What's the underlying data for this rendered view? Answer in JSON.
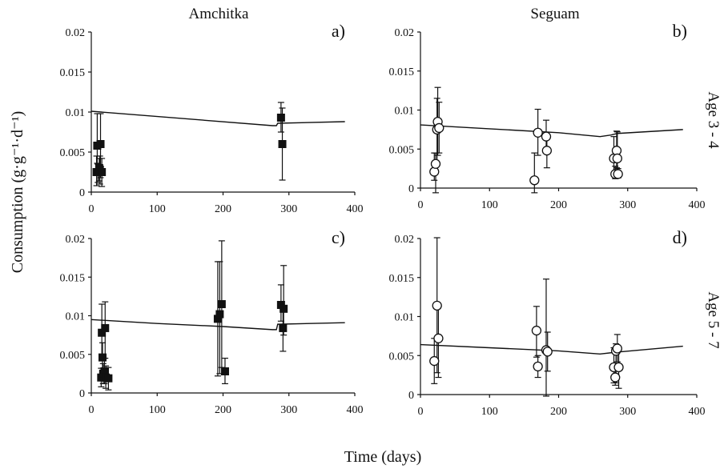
{
  "figure": {
    "column_titles": [
      "Amchitka",
      "Seguam"
    ],
    "row_labels": [
      "Age 3 - 4",
      "Age 5 - 7"
    ],
    "ylabel": "Consumption (g·g⁻¹·d⁻¹)",
    "xlabel": "Time (days)"
  },
  "chart_data": [
    {
      "type": "scatter",
      "panel": "a)",
      "location": "Amchitka",
      "age": "Age 3 - 4",
      "marker": "filled-square",
      "xlim": [
        0,
        400
      ],
      "ylim": [
        0,
        0.02
      ],
      "xticks": [
        "0",
        "100",
        "200",
        "300",
        "400"
      ],
      "yticks": [
        "0",
        "0.005",
        "0.01",
        "0.015",
        "0.02"
      ],
      "points": [
        {
          "x": 8,
          "y": 0.0025,
          "lo": 0.0008,
          "hi": 0.0045
        },
        {
          "x": 9,
          "y": 0.0058,
          "lo": 0.0036,
          "hi": 0.0098
        },
        {
          "x": 10,
          "y": 0.0025,
          "lo": 0.0012,
          "hi": 0.0035
        },
        {
          "x": 12,
          "y": 0.003,
          "lo": 0.0014,
          "hi": 0.0042
        },
        {
          "x": 13,
          "y": 0.0028,
          "lo": 0.001,
          "hi": 0.0045
        },
        {
          "x": 14,
          "y": 0.006,
          "lo": 0.0018,
          "hi": 0.0098
        },
        {
          "x": 16,
          "y": 0.0025,
          "lo": 0.0007,
          "hi": 0.0042
        },
        {
          "x": 288,
          "y": 0.0093,
          "lo": 0.0075,
          "hi": 0.0112
        },
        {
          "x": 290,
          "y": 0.006,
          "lo": 0.0015,
          "hi": 0.0105
        }
      ],
      "model_line": {
        "x": [
          0,
          275,
          276,
          281,
          283,
          385
        ],
        "y": [
          0.0101,
          0.0083,
          0.0083,
          0.0083,
          0.0086,
          0.0088
        ]
      }
    },
    {
      "type": "scatter",
      "panel": "b)",
      "location": "Seguam",
      "age": "Age 3 - 4",
      "marker": "open-circle",
      "xlim": [
        0,
        400
      ],
      "ylim": [
        0,
        0.02
      ],
      "xticks": [
        "0",
        "100",
        "200",
        "300",
        "400"
      ],
      "yticks": [
        "0",
        "0.005",
        "0.01",
        "0.015",
        "0.02"
      ],
      "points": [
        {
          "x": 20,
          "y": 0.0021,
          "lo": 0.001,
          "hi": 0.0045
        },
        {
          "x": 22,
          "y": 0.0031,
          "lo": -0.0006,
          "hi": 0.0045
        },
        {
          "x": 24,
          "y": 0.0075,
          "lo": 0.0031,
          "hi": 0.0115
        },
        {
          "x": 25,
          "y": 0.0085,
          "lo": 0.0042,
          "hi": 0.0129
        },
        {
          "x": 27,
          "y": 0.0077,
          "lo": 0.0045,
          "hi": 0.011
        },
        {
          "x": 165,
          "y": 0.001,
          "lo": -0.0006,
          "hi": 0.0045
        },
        {
          "x": 170,
          "y": 0.0071,
          "lo": 0.0042,
          "hi": 0.0101
        },
        {
          "x": 182,
          "y": 0.0066,
          "lo": 0.0045,
          "hi": 0.0087
        },
        {
          "x": 183,
          "y": 0.0048,
          "lo": 0.0026,
          "hi": 0.0069
        },
        {
          "x": 280,
          "y": 0.0038,
          "lo": 0.0017,
          "hi": 0.0066
        },
        {
          "x": 282,
          "y": 0.0018,
          "lo": 0.0012,
          "hi": 0.0028
        },
        {
          "x": 284,
          "y": 0.0048,
          "lo": 0.0026,
          "hi": 0.0073
        },
        {
          "x": 285,
          "y": 0.0038,
          "lo": 0.0018,
          "hi": 0.0072
        },
        {
          "x": 286,
          "y": 0.0018,
          "lo": 0.0013,
          "hi": 0.0025
        }
      ],
      "model_line": {
        "x": [
          0,
          100,
          200,
          260,
          276,
          285,
          380
        ],
        "y": [
          0.0081,
          0.0076,
          0.0071,
          0.0066,
          0.0068,
          0.007,
          0.0075
        ]
      }
    },
    {
      "type": "scatter",
      "panel": "c)",
      "location": "Amchitka",
      "age": "Age 5 - 7",
      "marker": "filled-square",
      "xlim": [
        0,
        400
      ],
      "ylim": [
        0,
        0.02
      ],
      "xticks": [
        "0",
        "100",
        "200",
        "300",
        "400"
      ],
      "yticks": [
        "0",
        "0.005",
        "0.01",
        "0.015",
        "0.02"
      ],
      "points": [
        {
          "x": 15,
          "y": 0.002,
          "lo": 0.0008,
          "hi": 0.0032
        },
        {
          "x": 16,
          "y": 0.0078,
          "lo": 0.0045,
          "hi": 0.0115
        },
        {
          "x": 17,
          "y": 0.0046,
          "lo": 0.0028,
          "hi": 0.0065
        },
        {
          "x": 18,
          "y": 0.0025,
          "lo": 0.0012,
          "hi": 0.0038
        },
        {
          "x": 20,
          "y": 0.0028,
          "lo": 0.0012,
          "hi": 0.0045
        },
        {
          "x": 21,
          "y": 0.0084,
          "lo": 0.0045,
          "hi": 0.0118
        },
        {
          "x": 22,
          "y": 0.002,
          "lo": 0.0006,
          "hi": 0.0035
        },
        {
          "x": 26,
          "y": 0.0019,
          "lo": 0.0004,
          "hi": 0.0033
        },
        {
          "x": 192,
          "y": 0.0096,
          "lo": 0.0022,
          "hi": 0.017
        },
        {
          "x": 195,
          "y": 0.0102,
          "lo": 0.0025,
          "hi": 0.017
        },
        {
          "x": 198,
          "y": 0.0115,
          "lo": 0.0033,
          "hi": 0.0197
        },
        {
          "x": 203,
          "y": 0.0028,
          "lo": 0.0012,
          "hi": 0.0045
        },
        {
          "x": 288,
          "y": 0.0114,
          "lo": 0.0093,
          "hi": 0.014
        },
        {
          "x": 291,
          "y": 0.0084,
          "lo": 0.0054,
          "hi": 0.0112
        },
        {
          "x": 292,
          "y": 0.0109,
          "lo": 0.0075,
          "hi": 0.0165
        }
      ],
      "model_line": {
        "x": [
          0,
          100,
          200,
          275,
          276,
          281,
          283,
          385
        ],
        "y": [
          0.0095,
          0.009,
          0.0086,
          0.0082,
          0.0082,
          0.0082,
          0.0089,
          0.0091
        ]
      }
    },
    {
      "type": "scatter",
      "panel": "d)",
      "location": "Seguam",
      "age": "Age 5 - 7",
      "marker": "open-circle",
      "xlim": [
        0,
        400
      ],
      "ylim": [
        0,
        0.02
      ],
      "xticks": [
        "0",
        "100",
        "200",
        "300",
        "400"
      ],
      "yticks": [
        "0",
        "0.005",
        "0.01",
        "0.015",
        "0.02"
      ],
      "points": [
        {
          "x": 20,
          "y": 0.0043,
          "lo": 0.0014,
          "hi": 0.0072
        },
        {
          "x": 24,
          "y": 0.0114,
          "lo": 0.0028,
          "hi": 0.0201
        },
        {
          "x": 26,
          "y": 0.0072,
          "lo": 0.0022,
          "hi": 0.0115
        },
        {
          "x": 168,
          "y": 0.0082,
          "lo": 0.0048,
          "hi": 0.0113
        },
        {
          "x": 170,
          "y": 0.0036,
          "lo": 0.0022,
          "hi": 0.005
        },
        {
          "x": 182,
          "y": 0.0057,
          "lo": -0.0002,
          "hi": 0.0148
        },
        {
          "x": 184,
          "y": 0.0055,
          "lo": 0.003,
          "hi": 0.008
        },
        {
          "x": 280,
          "y": 0.0035,
          "lo": 0.0015,
          "hi": 0.006
        },
        {
          "x": 282,
          "y": 0.0022,
          "lo": 0.0012,
          "hi": 0.0035
        },
        {
          "x": 283,
          "y": 0.0056,
          "lo": 0.0015,
          "hi": 0.0065
        },
        {
          "x": 285,
          "y": 0.0059,
          "lo": 0.0042,
          "hi": 0.0077
        },
        {
          "x": 287,
          "y": 0.0035,
          "lo": 0.0008,
          "hi": 0.0058
        }
      ],
      "model_line": {
        "x": [
          0,
          100,
          200,
          260,
          280,
          380
        ],
        "y": [
          0.0064,
          0.006,
          0.0056,
          0.0052,
          0.0054,
          0.0062
        ]
      }
    }
  ]
}
